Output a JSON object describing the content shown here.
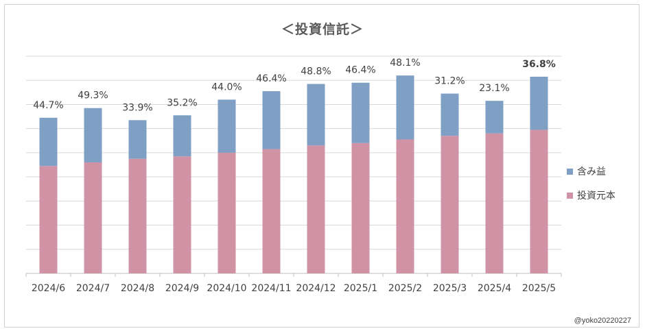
{
  "chart_data": {
    "type": "bar",
    "stacked": true,
    "title": "＜投資信託＞",
    "categories": [
      "2024/6",
      "2024/7",
      "2024/8",
      "2024/9",
      "2024/10",
      "2024/11",
      "2024/12",
      "2025/1",
      "2025/2",
      "2025/3",
      "2025/4",
      "2025/5"
    ],
    "series": [
      {
        "name": "投資元本",
        "color": "#d093a6",
        "values": [
          44.5,
          46,
          47.5,
          48.5,
          50,
          51.5,
          53,
          54,
          55.5,
          57,
          58,
          59.5
        ]
      },
      {
        "name": "含み益",
        "color": "#7f9fc4",
        "values": [
          20,
          22.5,
          16,
          17,
          22,
          24,
          25.5,
          25,
          26.5,
          17.5,
          13.5,
          22
        ]
      }
    ],
    "data_labels": [
      "44.7%",
      "49.3%",
      "33.9%",
      "35.2%",
      "44.0%",
      "46.4%",
      "48.8%",
      "46.4%",
      "48.1%",
      "31.2%",
      "23.1%",
      "36.8%"
    ],
    "bold_label_index": 11,
    "gridlines": 9,
    "ylim": [
      0,
      90
    ],
    "grid": true,
    "legend_position": "right"
  },
  "credit": "@yoko20220227"
}
